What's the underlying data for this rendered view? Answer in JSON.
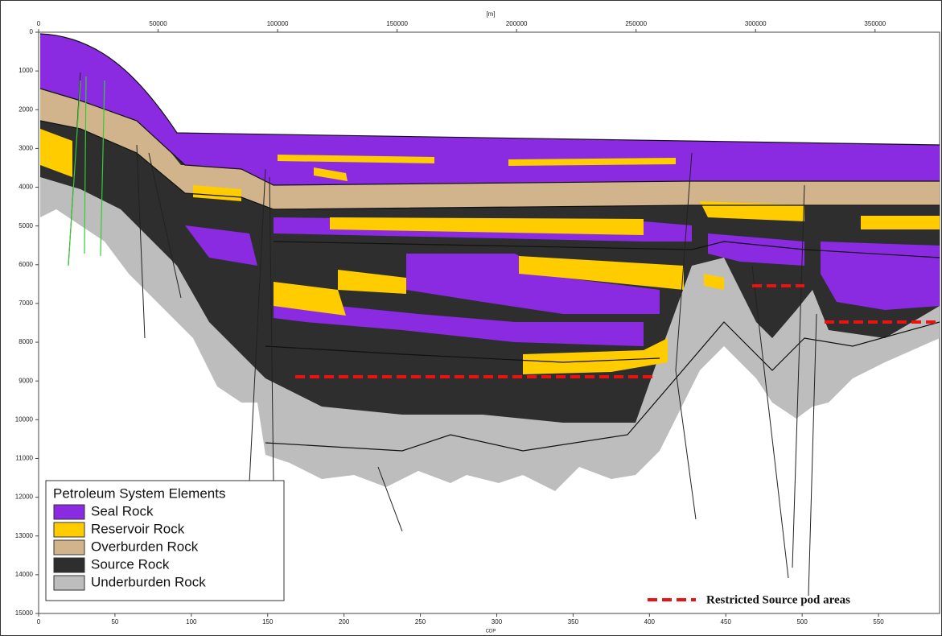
{
  "chart_data": {
    "type": "cross-section",
    "x2label": "[m]",
    "xlabel": "CDP",
    "x2lim": [
      0,
      377000
    ],
    "x2ticks": [
      0,
      50000,
      100000,
      150000,
      200000,
      250000,
      300000,
      350000
    ],
    "xlim": [
      0,
      590
    ],
    "xticks": [
      0,
      50,
      100,
      150,
      200,
      250,
      300,
      350,
      400,
      450,
      500,
      550
    ],
    "ylim": [
      0,
      15000
    ],
    "yticks": [
      0,
      1000,
      2000,
      3000,
      4000,
      5000,
      6000,
      7000,
      8000,
      9000,
      10000,
      11000,
      12000,
      13000,
      14000,
      15000
    ],
    "legend_title": "Petroleum System Elements",
    "series": [
      {
        "name": "Seal Rock",
        "color": "#8a2be2"
      },
      {
        "name": "Reservoir Rock",
        "color": "#ffcc00"
      },
      {
        "name": "Overburden Rock",
        "color": "#d2b48c"
      },
      {
        "name": "Source Rock",
        "color": "#2e2e2e"
      },
      {
        "name": "Underburden Rock",
        "color": "#bdbdbd"
      }
    ],
    "annotation": "Restricted Source pod areas"
  }
}
